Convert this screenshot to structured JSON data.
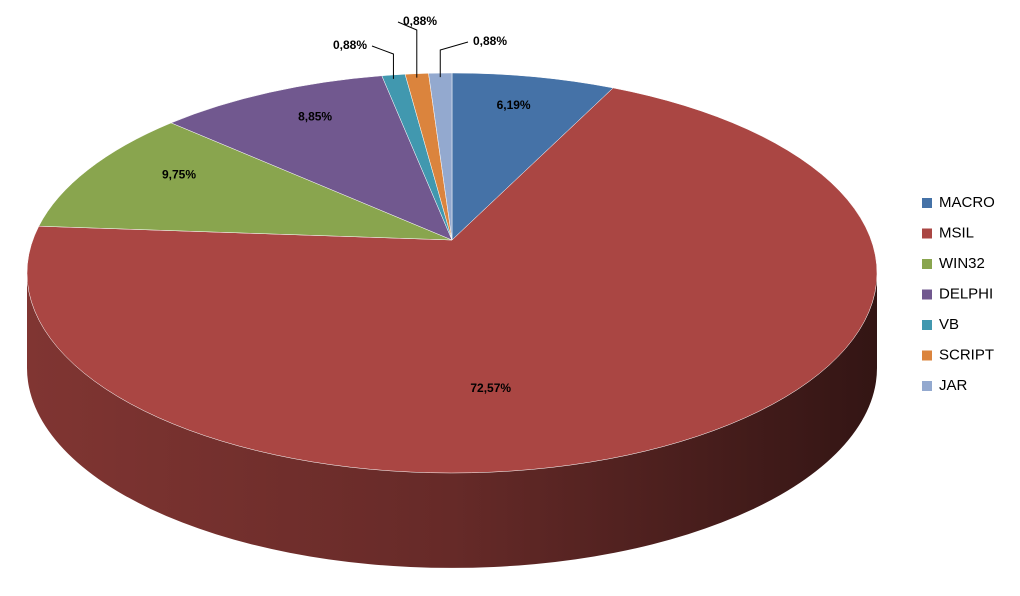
{
  "chart_data": {
    "type": "pie",
    "categories": [
      "MACRO",
      "MSIL",
      "WIN32",
      "DELPHI",
      "VB",
      "SCRIPT",
      "JAR"
    ],
    "values": [
      6.19,
      72.57,
      9.75,
      8.85,
      0.88,
      0.88,
      0.88
    ],
    "value_labels": [
      "6,19%",
      "72,57%",
      "9,75%",
      "8,85%",
      "0,88%",
      "0,88%",
      "0,88%"
    ],
    "colors": [
      "#4572a7",
      "#aa4643",
      "#89a54e",
      "#71588f",
      "#4198af",
      "#db843d",
      "#93a9cf"
    ],
    "legend": "right"
  }
}
